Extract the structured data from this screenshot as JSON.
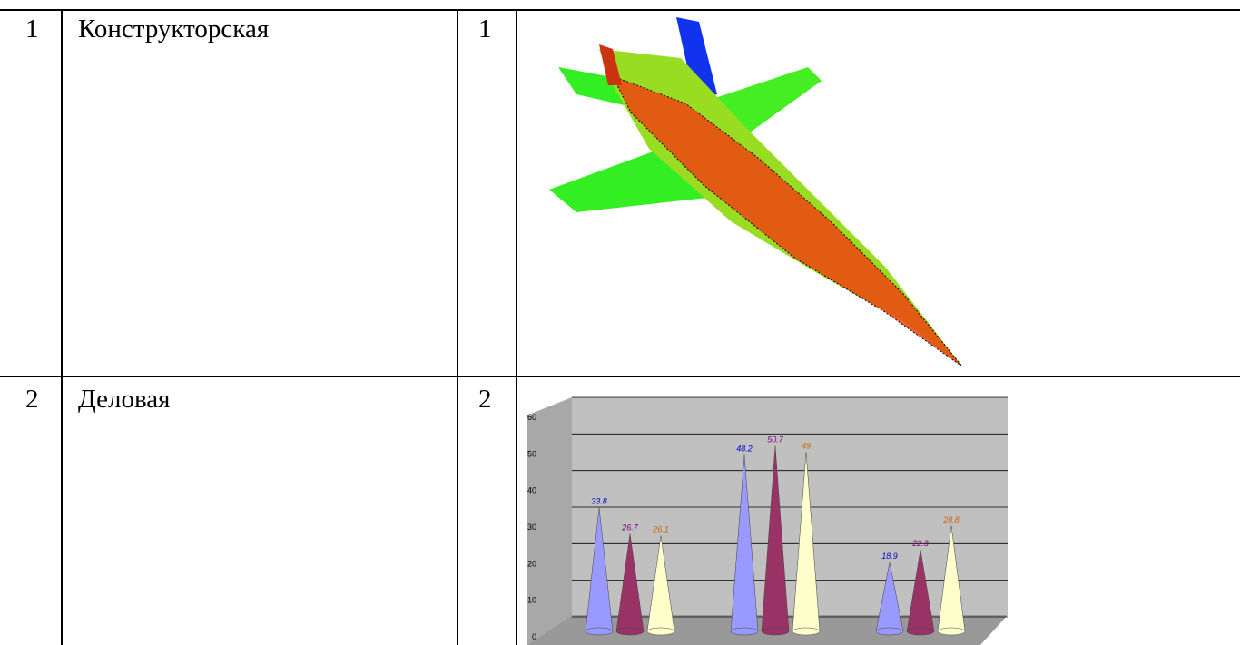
{
  "table": {
    "rows": [
      [
        "1",
        "Конструкторская",
        "1"
      ],
      [
        "2",
        "Деловая",
        "2"
      ]
    ]
  },
  "chart_data": {
    "type": "cone",
    "series": [
      {
        "color": "#9999ff",
        "values": [
          33.8,
          48.2,
          18.9
        ]
      },
      {
        "color": "#993366",
        "values": [
          26.7,
          50.7,
          22.3
        ]
      },
      {
        "color": "#ffffcc",
        "values": [
          26.1,
          49,
          28.8
        ]
      }
    ],
    "label_colors": [
      "#0000cc",
      "#800080",
      "#cc6600"
    ],
    "ylim": [
      0,
      60
    ],
    "yticks": [
      0,
      10,
      20,
      30,
      40,
      50,
      60
    ],
    "grid": true
  }
}
